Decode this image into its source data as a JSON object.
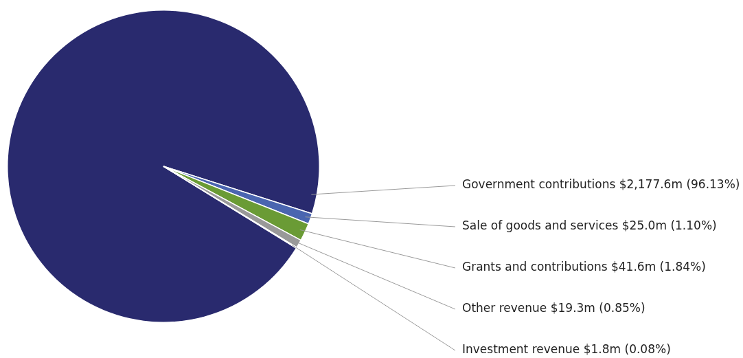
{
  "chart_data": {
    "type": "pie",
    "categories": [
      "Government contributions $2,177.6m",
      "Sale of goods and services $25.0m",
      "Grants and contributions $41.6m",
      "Other revenue $19.3m",
      "Investment revenue $1.8m"
    ],
    "values": [
      96.13,
      1.1,
      1.84,
      0.85,
      0.08
    ],
    "value_labels": [
      "(96.13%)",
      "(1.10%)",
      "(1.84%)",
      "(0.85%)",
      "(0.08%)"
    ],
    "colors": [
      "#292a6e",
      "#4a65b0",
      "#6a9b35",
      "#999999",
      "#1ea0dc"
    ],
    "legend": false
  }
}
